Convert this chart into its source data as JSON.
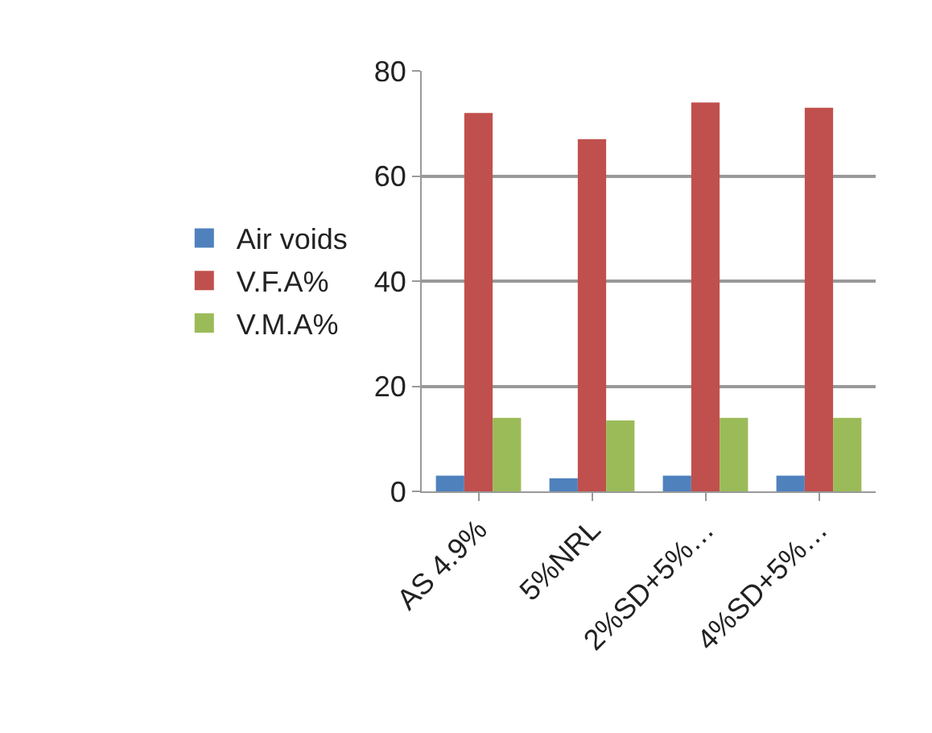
{
  "chart_data": {
    "type": "bar",
    "categories": [
      "AS 4.9%",
      "5%NRL",
      "2%SD+5%…",
      "4%SD+5%…"
    ],
    "series": [
      {
        "name": "Air voids",
        "color": "#4f81bd",
        "values": [
          3,
          2.5,
          3,
          3
        ]
      },
      {
        "name": "V.F.A%",
        "color": "#c0504d",
        "values": [
          72,
          67,
          74,
          73
        ]
      },
      {
        "name": "V.M.A%",
        "color": "#9bbb59",
        "values": [
          14,
          13.5,
          14,
          14
        ]
      }
    ],
    "ylim": [
      0,
      80
    ],
    "yticks": [
      0,
      20,
      40,
      60,
      80
    ],
    "grid": "y",
    "legend": "left"
  }
}
